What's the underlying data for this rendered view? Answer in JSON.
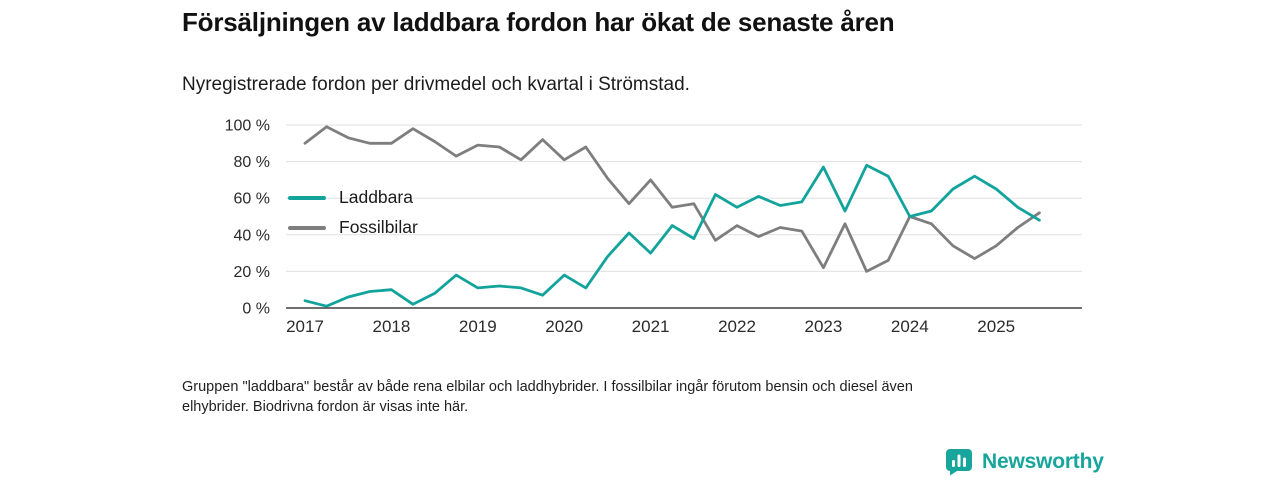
{
  "chart_data": {
    "type": "line",
    "title": "Försäljningen av laddbara fordon har ökat de senaste åren",
    "subtitle": "Nyregistrerade fordon per drivmedel och kvartal i Strömstad.",
    "xlabel": "",
    "ylabel": "",
    "ylim": [
      0,
      100
    ],
    "grid": true,
    "legend_position": "inside-left",
    "y_ticks": [
      0,
      20,
      40,
      60,
      80,
      100
    ],
    "y_tick_labels": [
      "0 %",
      "20 %",
      "40 %",
      "60 %",
      "80 %",
      "100 %"
    ],
    "year_labels": [
      "2017",
      "2018",
      "2019",
      "2020",
      "2021",
      "2022",
      "2023",
      "2024",
      "2025"
    ],
    "x": [
      "2017 Q1",
      "2017 Q2",
      "2017 Q3",
      "2017 Q4",
      "2018 Q1",
      "2018 Q2",
      "2018 Q3",
      "2018 Q4",
      "2019 Q1",
      "2019 Q2",
      "2019 Q3",
      "2019 Q4",
      "2020 Q1",
      "2020 Q2",
      "2020 Q3",
      "2020 Q4",
      "2021 Q1",
      "2021 Q2",
      "2021 Q3",
      "2021 Q4",
      "2022 Q1",
      "2022 Q2",
      "2022 Q3",
      "2022 Q4",
      "2023 Q1",
      "2023 Q2",
      "2023 Q3",
      "2023 Q4",
      "2024 Q1",
      "2024 Q2",
      "2024 Q3",
      "2024 Q4",
      "2025 Q1",
      "2025 Q2",
      "2025 Q3"
    ],
    "series": [
      {
        "name": "Laddbara",
        "color": "#12a49c",
        "values": [
          4,
          1,
          6,
          9,
          10,
          2,
          8,
          18,
          11,
          12,
          11,
          7,
          18,
          11,
          28,
          41,
          30,
          45,
          38,
          62,
          55,
          61,
          56,
          58,
          77,
          53,
          78,
          72,
          50,
          53,
          65,
          72,
          65,
          55,
          48
        ]
      },
      {
        "name": "Fossilbilar",
        "color": "#7e7e7e",
        "values": [
          90,
          99,
          93,
          90,
          90,
          98,
          91,
          83,
          89,
          88,
          81,
          92,
          81,
          88,
          71,
          57,
          70,
          55,
          57,
          37,
          45,
          39,
          44,
          42,
          22,
          46,
          20,
          26,
          50,
          46,
          34,
          27,
          34,
          44,
          52
        ]
      }
    ]
  },
  "footnote": {
    "lines": [
      "Gruppen \"laddbara\" består av både rena elbilar och laddhybrider. I fossilbilar ingår förutom bensin och diesel även",
      "elhybrider. Biodrivna fordon är visas inte här."
    ]
  },
  "brand": {
    "name": "Newsworthy",
    "color": "#18a59c"
  },
  "colors": {
    "gridline": "#e0e0e0",
    "axis_line": "#3f3f3f",
    "tick_text": "#2b2b2b"
  }
}
